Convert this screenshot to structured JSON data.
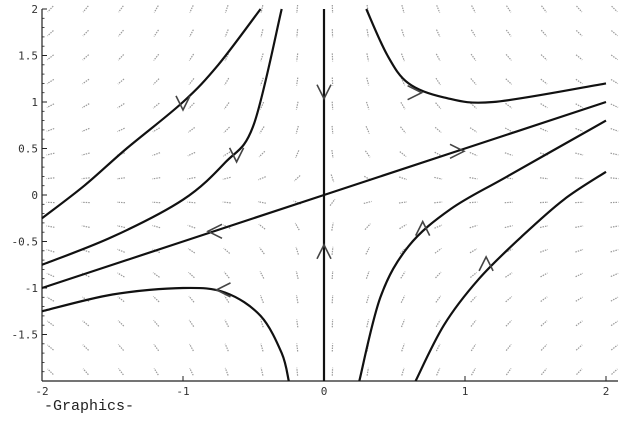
{
  "caption": "-Graphics-",
  "chart_data": {
    "type": "line",
    "xlim": [
      -2,
      2
    ],
    "ylim": [
      -2,
      2
    ],
    "xticks": [
      "-2",
      "-1",
      "0",
      "1",
      "2"
    ],
    "yticks": [
      "-1.5",
      "-1",
      "-0.5",
      "0",
      "0.5",
      "1",
      "1.5",
      "2"
    ],
    "grid": false,
    "series": [
      {
        "x": [
          -2.0,
          -1.7,
          -1.4,
          -1.0,
          -0.75,
          -0.45
        ],
        "y": [
          -0.25,
          0.1,
          0.5,
          1.0,
          1.4,
          2.0
        ]
      },
      {
        "x": [
          -2.0,
          -1.5,
          -1.0,
          -0.7,
          -0.5,
          -0.3
        ],
        "y": [
          -0.75,
          -0.45,
          -0.05,
          0.35,
          0.75,
          2.0
        ]
      },
      {
        "x": [
          -2.0,
          -1.0,
          0.0,
          1.0,
          2.0
        ],
        "y": [
          -1.0,
          -0.5,
          0.0,
          0.5,
          1.0
        ]
      },
      {
        "x": [
          -2.0,
          -1.5,
          -1.0,
          -0.7,
          -0.45,
          -0.3,
          -0.25
        ],
        "y": [
          -1.25,
          -1.07,
          -1.0,
          -1.05,
          -1.3,
          -1.7,
          -2.0
        ]
      },
      {
        "x": [
          0.0,
          0.0
        ],
        "y": [
          2.0,
          -2.0
        ]
      },
      {
        "x": [
          0.3,
          0.45,
          0.6,
          0.85,
          1.2,
          2.0
        ],
        "y": [
          2.0,
          1.5,
          1.2,
          1.05,
          1.0,
          1.2
        ]
      },
      {
        "x": [
          0.25,
          0.4,
          0.6,
          0.9,
          1.3,
          2.0
        ],
        "y": [
          -2.0,
          -1.1,
          -0.55,
          -0.15,
          0.2,
          0.8
        ]
      },
      {
        "x": [
          0.65,
          0.85,
          1.1,
          1.4,
          1.7,
          2.0
        ],
        "y": [
          -2.0,
          -1.4,
          -0.9,
          -0.45,
          -0.05,
          0.25
        ]
      }
    ],
    "arrows": [
      {
        "x": -1.0,
        "y": 0.98,
        "dir": "down"
      },
      {
        "x": -0.62,
        "y": 0.42,
        "dir": "down"
      },
      {
        "x": -0.78,
        "y": -0.39,
        "dir": "left"
      },
      {
        "x": 0.95,
        "y": 0.47,
        "dir": "right"
      },
      {
        "x": -0.72,
        "y": -1.02,
        "dir": "left"
      },
      {
        "x": 0.0,
        "y": 1.1,
        "dir": "down"
      },
      {
        "x": 0.0,
        "y": -0.6,
        "dir": "up"
      },
      {
        "x": 0.65,
        "y": 1.1,
        "dir": "right"
      },
      {
        "x": 0.7,
        "y": -0.35,
        "dir": "up"
      },
      {
        "x": 1.15,
        "y": -0.73,
        "dir": "up"
      }
    ]
  }
}
